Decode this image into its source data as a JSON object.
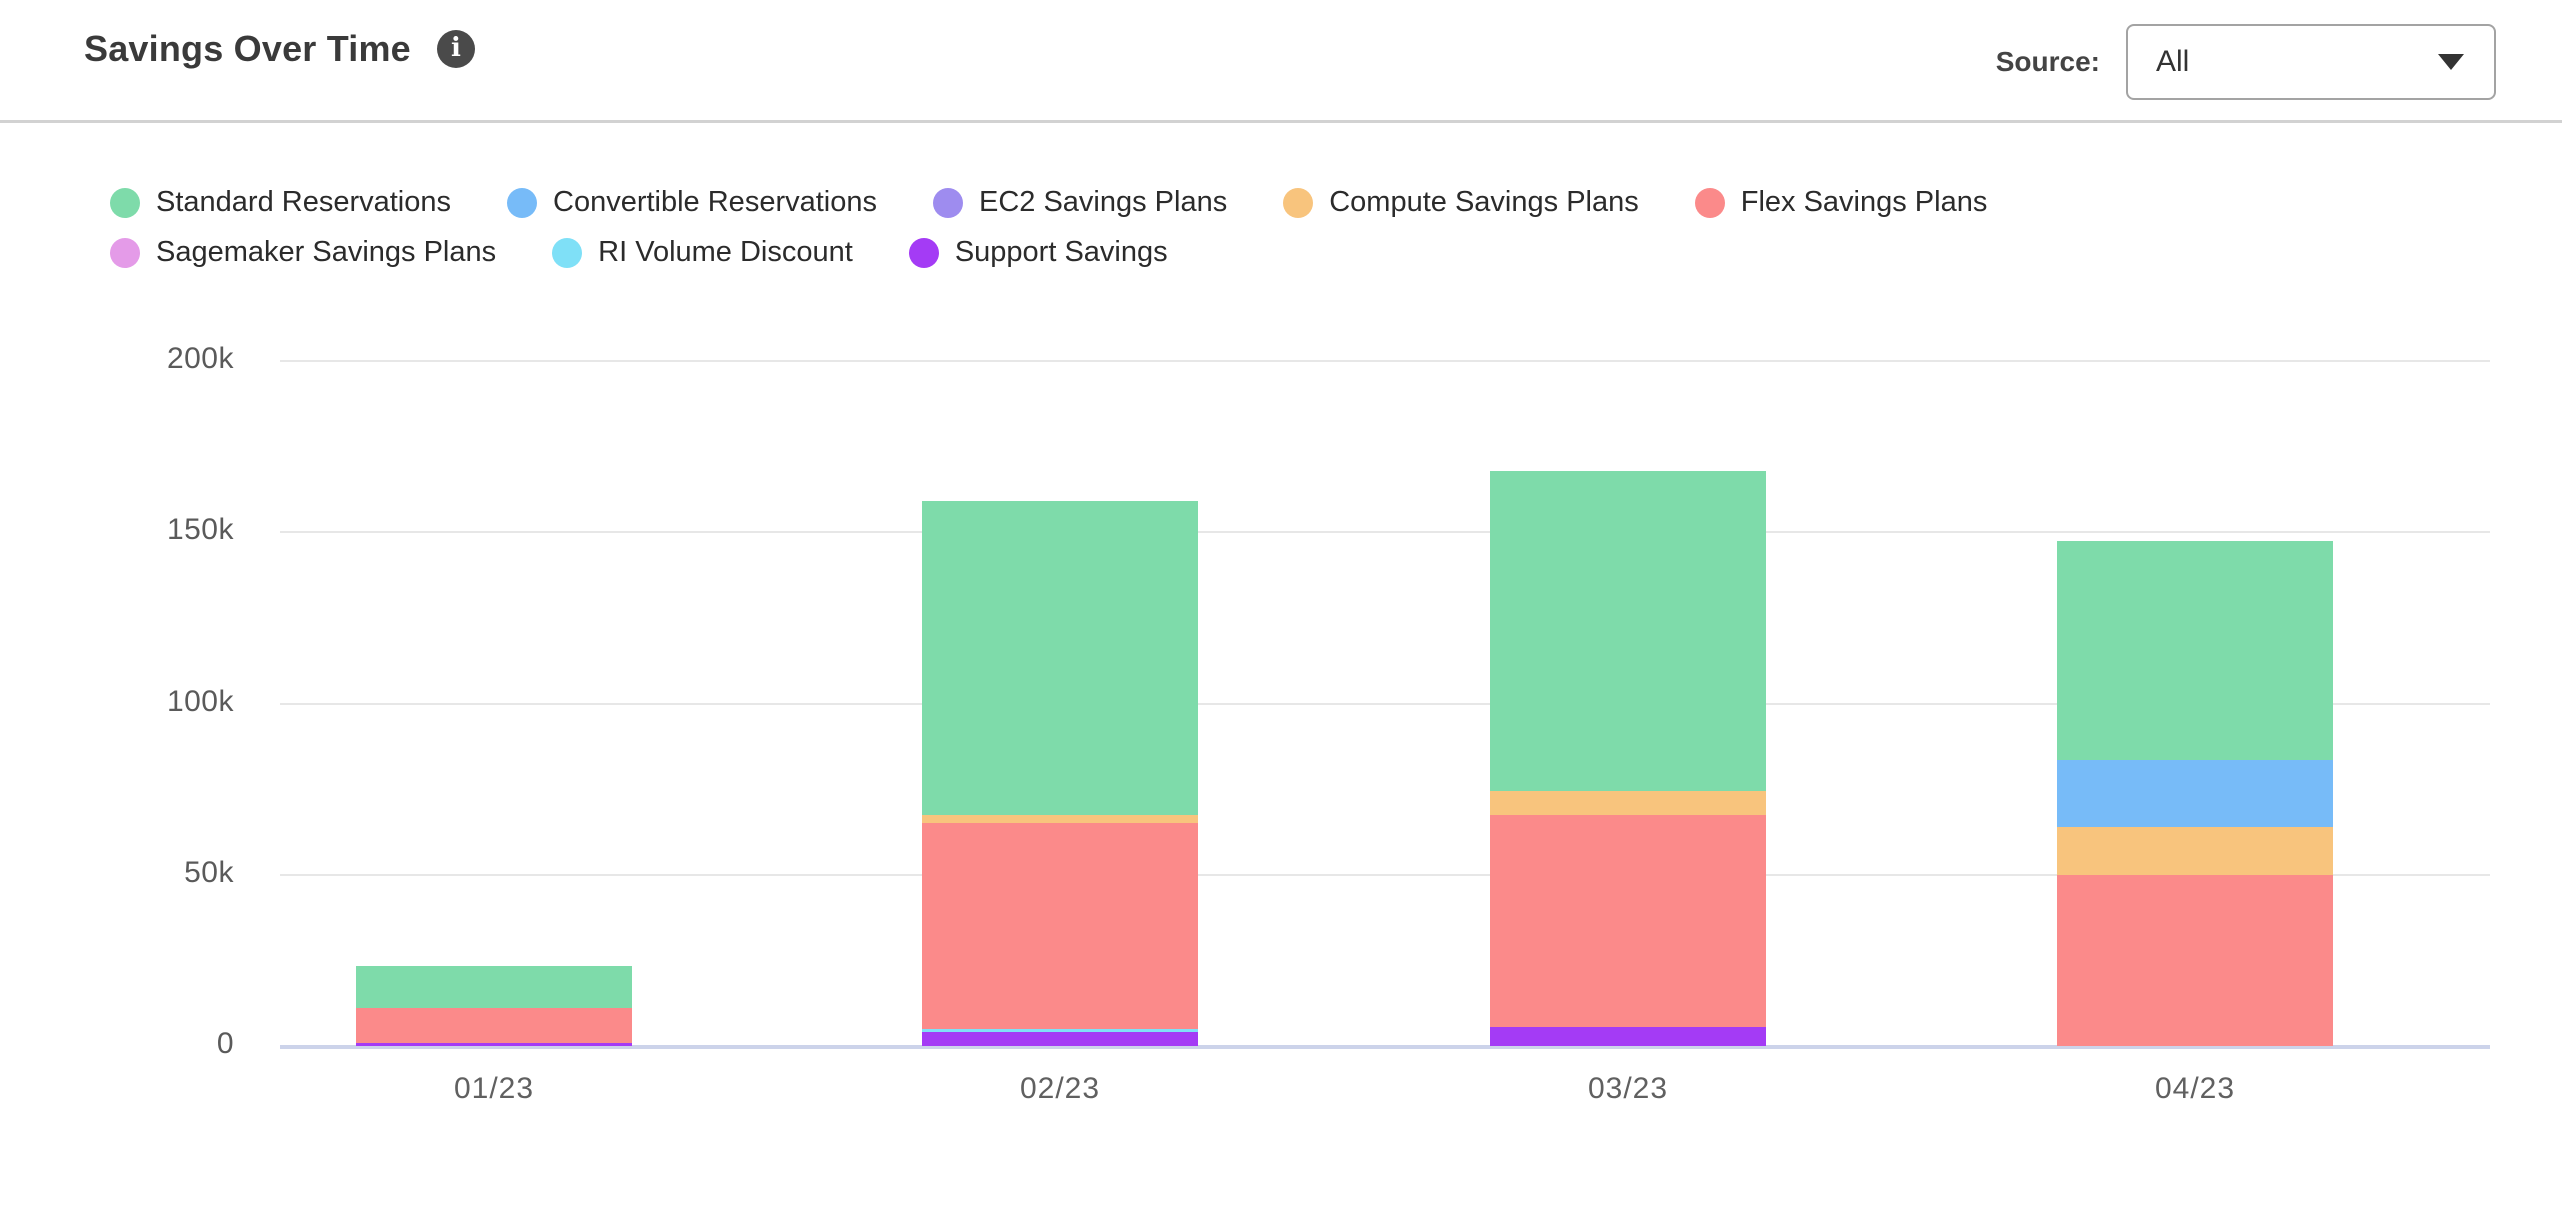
{
  "header": {
    "title": "Savings Over Time",
    "info_icon": "i",
    "source_label": "Source:",
    "source_value": "All"
  },
  "legend": {
    "row_breaks": [
      5,
      3
    ]
  },
  "chart_data": {
    "type": "bar",
    "stacked": true,
    "title": "Savings Over Time",
    "categories": [
      "01/23",
      "02/23",
      "03/23",
      "04/23"
    ],
    "series": [
      {
        "name": "Standard Reservations",
        "color": "#7EDBAA",
        "values": [
          12500,
          91500,
          93500,
          64000
        ]
      },
      {
        "name": "Convertible Reservations",
        "color": "#77BBF8",
        "values": [
          0,
          0,
          0,
          19500
        ]
      },
      {
        "name": "EC2 Savings Plans",
        "color": "#9E8CEF",
        "values": [
          0,
          0,
          0,
          0
        ]
      },
      {
        "name": "Compute Savings Plans",
        "color": "#F8C47D",
        "values": [
          0,
          2500,
          7000,
          14000
        ]
      },
      {
        "name": "Flex Savings Plans",
        "color": "#FB8A8A",
        "values": [
          10000,
          60000,
          62000,
          50000
        ]
      },
      {
        "name": "Sagemaker Savings Plans",
        "color": "#E49BE8",
        "values": [
          0,
          0,
          0,
          0
        ]
      },
      {
        "name": "RI Volume Discount",
        "color": "#7FE0F7",
        "values": [
          0,
          1000,
          0,
          0
        ]
      },
      {
        "name": "Support Savings",
        "color": "#A43BF5",
        "values": [
          1000,
          4000,
          5500,
          0
        ]
      }
    ],
    "stack_order_bottom_to_top": [
      "Support Savings",
      "RI Volume Discount",
      "Sagemaker Savings Plans",
      "Flex Savings Plans",
      "Compute Savings Plans",
      "EC2 Savings Plans",
      "Convertible Reservations",
      "Standard Reservations"
    ],
    "y_ticks": [
      {
        "label": "200k",
        "value": 200000
      },
      {
        "label": "150k",
        "value": 150000
      },
      {
        "label": "100k",
        "value": 100000
      },
      {
        "label": "50k",
        "value": 50000
      },
      {
        "label": "0",
        "value": 0
      }
    ],
    "ylim": [
      0,
      200000
    ],
    "grid": true,
    "legend_position": "top-left",
    "totals": [
      23500,
      159000,
      168000,
      147500
    ]
  }
}
